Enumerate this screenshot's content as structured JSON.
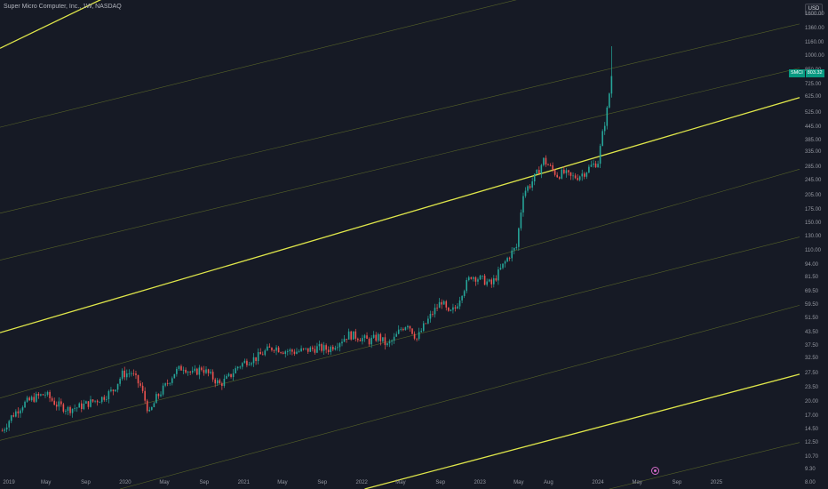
{
  "header": {
    "title": "Super Micro Computer, Inc., 1W, NASDAQ",
    "currency": "USD"
  },
  "price_label": {
    "symbol": "SMCI",
    "value": "803.32"
  },
  "colors": {
    "background": "#161a25",
    "up": "#26a69a",
    "down": "#ef5350",
    "channel_main": "#dfe64a",
    "channel_minor": "#6b7a2a",
    "event": "#d36ac8"
  },
  "icons": {
    "event": "calendar-event-icon"
  },
  "chart_data": {
    "type": "candlestick",
    "title": "Super Micro Computer, Inc., 1W, NASDAQ",
    "yscale": "log",
    "ylim": [
      7.5,
      1900
    ],
    "xlim": [
      "2018-12-10",
      "2025-09-15"
    ],
    "y_tick_labels": [
      "1600.00",
      "1360.00",
      "1160.00",
      "1000.00",
      "850.00",
      "725.00",
      "625.00",
      "525.00",
      "445.00",
      "385.00",
      "335.00",
      "285.00",
      "245.00",
      "205.00",
      "175.00",
      "150.00",
      "130.00",
      "110.00",
      "94.00",
      "81.50",
      "69.50",
      "59.50",
      "51.50",
      "43.50",
      "37.50",
      "32.50",
      "27.50",
      "23.50",
      "20.00",
      "17.00",
      "14.50",
      "12.50",
      "10.70",
      "9.30",
      "8.00"
    ],
    "x_tick_labels": [
      {
        "label": "2019",
        "date": "2019-01-01"
      },
      {
        "label": "May",
        "date": "2019-05-01"
      },
      {
        "label": "Sep",
        "date": "2019-09-01"
      },
      {
        "label": "2020",
        "date": "2020-01-01"
      },
      {
        "label": "May",
        "date": "2020-05-01"
      },
      {
        "label": "Sep",
        "date": "2020-09-01"
      },
      {
        "label": "2021",
        "date": "2021-01-01"
      },
      {
        "label": "May",
        "date": "2021-05-01"
      },
      {
        "label": "Sep",
        "date": "2021-09-01"
      },
      {
        "label": "2022",
        "date": "2022-01-01"
      },
      {
        "label": "May",
        "date": "2022-05-01"
      },
      {
        "label": "Sep",
        "date": "2022-09-01"
      },
      {
        "label": "2023",
        "date": "2023-01-01"
      },
      {
        "label": "May",
        "date": "2023-05-01"
      },
      {
        "label": "Aug",
        "date": "2023-08-01"
      },
      {
        "label": "2024",
        "date": "2024-01-01"
      },
      {
        "label": "May",
        "date": "2024-05-01"
      },
      {
        "label": "Sep",
        "date": "2024-09-01"
      },
      {
        "label": "2025",
        "date": "2025-01-01"
      }
    ],
    "close_path": [
      [
        "2018-12-17",
        14.5
      ],
      [
        "2019-01-14",
        17
      ],
      [
        "2019-02-18",
        19.5
      ],
      [
        "2019-03-25",
        21
      ],
      [
        "2019-04-29",
        22
      ],
      [
        "2019-06-03",
        19.5
      ],
      [
        "2019-07-08",
        18.5
      ],
      [
        "2019-08-12",
        19
      ],
      [
        "2019-09-16",
        20
      ],
      [
        "2019-10-21",
        21
      ],
      [
        "2019-11-25",
        23
      ],
      [
        "2019-12-23",
        27.5
      ],
      [
        "2020-01-20",
        28
      ],
      [
        "2020-02-17",
        24
      ],
      [
        "2020-03-16",
        17.5
      ],
      [
        "2020-04-06",
        21
      ],
      [
        "2020-05-04",
        24
      ],
      [
        "2020-06-01",
        28
      ],
      [
        "2020-06-29",
        30
      ],
      [
        "2020-07-27",
        27.5
      ],
      [
        "2020-08-24",
        29.5
      ],
      [
        "2020-09-21",
        27
      ],
      [
        "2020-10-19",
        24.5
      ],
      [
        "2020-11-16",
        26.5
      ],
      [
        "2020-12-14",
        30
      ],
      [
        "2021-01-11",
        32
      ],
      [
        "2021-02-08",
        33
      ],
      [
        "2021-03-08",
        35.5
      ],
      [
        "2021-04-05",
        37.5
      ],
      [
        "2021-05-03",
        36
      ],
      [
        "2021-06-07",
        35.5
      ],
      [
        "2021-07-12",
        36
      ],
      [
        "2021-08-16",
        37
      ],
      [
        "2021-09-20",
        36.5
      ],
      [
        "2021-10-25",
        40
      ],
      [
        "2021-11-22",
        43
      ],
      [
        "2021-12-20",
        42
      ],
      [
        "2022-01-24",
        40
      ],
      [
        "2022-02-21",
        42
      ],
      [
        "2022-03-21",
        38
      ],
      [
        "2022-04-11",
        41
      ],
      [
        "2022-05-02",
        46
      ],
      [
        "2022-05-23",
        49
      ],
      [
        "2022-06-20",
        41
      ],
      [
        "2022-07-11",
        47
      ],
      [
        "2022-08-08",
        55
      ],
      [
        "2022-09-05",
        63
      ],
      [
        "2022-09-26",
        54
      ],
      [
        "2022-10-17",
        58
      ],
      [
        "2022-11-07",
        70
      ],
      [
        "2022-12-05",
        84
      ],
      [
        "2023-01-09",
        80
      ],
      [
        "2023-02-06",
        76
      ],
      [
        "2023-03-06",
        90
      ],
      [
        "2023-04-03",
        106
      ],
      [
        "2023-04-24",
        116
      ],
      [
        "2023-05-15",
        215
      ],
      [
        "2023-06-05",
        235
      ],
      [
        "2023-06-26",
        265
      ],
      [
        "2023-07-17",
        310
      ],
      [
        "2023-08-07",
        285
      ],
      [
        "2023-08-28",
        262
      ],
      [
        "2023-09-18",
        268
      ],
      [
        "2023-10-09",
        255
      ],
      [
        "2023-10-30",
        258
      ],
      [
        "2023-11-20",
        270
      ],
      [
        "2023-12-11",
        290
      ],
      [
        "2024-01-01",
        305
      ],
      [
        "2024-01-15",
        415
      ],
      [
        "2024-01-29",
        545
      ],
      [
        "2024-02-12",
        803.32
      ]
    ],
    "series": [
      {
        "name": "SMCI",
        "type": "candlestick",
        "last": 803.32
      }
    ],
    "annotations": [
      {
        "type": "parallel-channel-line",
        "style": "main",
        "from": [
          "2018-12-10",
          1100
        ],
        "to": [
          "2020-01-06",
          2200
        ]
      },
      {
        "type": "parallel-channel-line",
        "style": "main",
        "from": [
          "2018-12-10",
          44
        ],
        "to": [
          "2025-09-15",
          630
        ]
      },
      {
        "type": "parallel-channel-line",
        "style": "main",
        "from": [
          "2022-01-10",
          7.5
        ],
        "to": [
          "2025-09-15",
          27.5
        ]
      },
      {
        "type": "parallel-channel-line",
        "style": "minor",
        "from": [
          "2018-12-10",
          450
        ],
        "to": [
          "2025-09-15",
          4200
        ]
      },
      {
        "type": "parallel-channel-line",
        "style": "minor",
        "from": [
          "2018-12-10",
          170
        ],
        "to": [
          "2025-09-15",
          1450
        ]
      },
      {
        "type": "parallel-channel-line",
        "style": "minor",
        "from": [
          "2018-12-10",
          100
        ],
        "to": [
          "2025-09-15",
          880
        ]
      },
      {
        "type": "parallel-channel-line",
        "style": "minor",
        "from": [
          "2018-12-10",
          21
        ],
        "to": [
          "2025-09-15",
          280
        ]
      },
      {
        "type": "parallel-channel-line",
        "style": "minor",
        "from": [
          "2018-12-10",
          13
        ],
        "to": [
          "2025-09-15",
          130
        ]
      },
      {
        "type": "parallel-channel-line",
        "style": "minor",
        "from": [
          "2019-12-16",
          7.5
        ],
        "to": [
          "2025-09-15",
          60
        ]
      },
      {
        "type": "parallel-channel-line",
        "style": "minor",
        "from": [
          "2024-02-05",
          7.5
        ],
        "to": [
          "2025-09-15",
          12.7
        ]
      }
    ],
    "grid": false,
    "legend": "none"
  }
}
